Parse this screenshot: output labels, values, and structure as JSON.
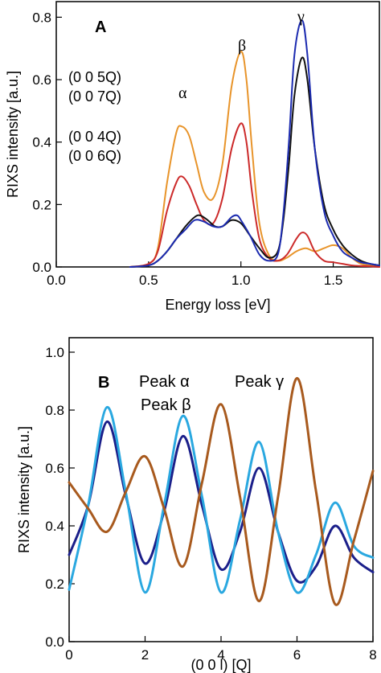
{
  "chart_data": [
    {
      "panel_label": "A",
      "type": "line",
      "xlabel": "Energy loss [eV]",
      "ylabel": "RIXS intensity [a.u.]",
      "xlim": [
        0,
        1.75
      ],
      "ylim": [
        0,
        0.85
      ],
      "x_ticks": [
        "0.0",
        "0.5",
        "1.0",
        "1.5"
      ],
      "x_tick_values": [
        0,
        0.5,
        1.0,
        1.5
      ],
      "y_ticks": [
        "0.0",
        "0.2",
        "0.4",
        "0.6",
        "0.8"
      ],
      "y_tick_values": [
        0,
        0.2,
        0.4,
        0.6,
        0.8
      ],
      "legend": [
        "(0 0 5Q)",
        "(0 0 7Q)",
        "(0 0 4Q)",
        "(0 0 6Q)"
      ],
      "peak_labels": [
        "α",
        "β",
        "γ"
      ],
      "series": [
        {
          "name": "(0 0 5Q)",
          "color": "#e8942a",
          "x": [
            0.4,
            0.5,
            0.55,
            0.6,
            0.65,
            0.68,
            0.72,
            0.76,
            0.8,
            0.85,
            0.9,
            0.95,
            1.0,
            1.03,
            1.06,
            1.1,
            1.15,
            1.2,
            1.25,
            1.3,
            1.35,
            1.4,
            1.45,
            1.5,
            1.55,
            1.6,
            1.65,
            1.7,
            1.75
          ],
          "y": [
            0.0,
            0.01,
            0.06,
            0.27,
            0.43,
            0.45,
            0.42,
            0.33,
            0.24,
            0.22,
            0.33,
            0.58,
            0.69,
            0.6,
            0.38,
            0.14,
            0.04,
            0.02,
            0.03,
            0.05,
            0.06,
            0.05,
            0.06,
            0.07,
            0.06,
            0.03,
            0.01,
            0.005,
            0.0
          ]
        },
        {
          "name": "(0 0 7Q)",
          "color": "#cc2a2a",
          "x": [
            0.4,
            0.5,
            0.55,
            0.6,
            0.65,
            0.68,
            0.72,
            0.76,
            0.8,
            0.85,
            0.9,
            0.95,
            1.0,
            1.03,
            1.06,
            1.1,
            1.15,
            1.2,
            1.25,
            1.3,
            1.33,
            1.36,
            1.4,
            1.45,
            1.5,
            1.55,
            1.6,
            1.65,
            1.7,
            1.75
          ],
          "y": [
            0.0,
            0.01,
            0.05,
            0.18,
            0.27,
            0.29,
            0.26,
            0.2,
            0.15,
            0.14,
            0.22,
            0.38,
            0.46,
            0.4,
            0.24,
            0.09,
            0.03,
            0.02,
            0.04,
            0.09,
            0.11,
            0.1,
            0.05,
            0.02,
            0.015,
            0.01,
            0.005,
            0.003,
            0.002,
            0.0
          ]
        },
        {
          "name": "(0 0 4Q)",
          "color": "#111111",
          "x": [
            0.4,
            0.5,
            0.55,
            0.6,
            0.65,
            0.7,
            0.75,
            0.78,
            0.82,
            0.86,
            0.9,
            0.95,
            1.0,
            1.05,
            1.1,
            1.15,
            1.2,
            1.23,
            1.26,
            1.29,
            1.33,
            1.36,
            1.4,
            1.45,
            1.5,
            1.55,
            1.6,
            1.65,
            1.7,
            1.75
          ],
          "y": [
            0.0,
            0.005,
            0.02,
            0.05,
            0.09,
            0.13,
            0.16,
            0.165,
            0.15,
            0.13,
            0.13,
            0.15,
            0.14,
            0.1,
            0.06,
            0.03,
            0.05,
            0.15,
            0.33,
            0.55,
            0.67,
            0.6,
            0.38,
            0.2,
            0.12,
            0.07,
            0.04,
            0.02,
            0.01,
            0.005
          ]
        },
        {
          "name": "(0 0 6Q)",
          "color": "#1c2bb0",
          "x": [
            0.4,
            0.5,
            0.55,
            0.6,
            0.65,
            0.7,
            0.75,
            0.8,
            0.85,
            0.9,
            0.95,
            0.98,
            1.0,
            1.05,
            1.1,
            1.15,
            1.2,
            1.23,
            1.26,
            1.29,
            1.33,
            1.36,
            1.4,
            1.45,
            1.5,
            1.55,
            1.6,
            1.65,
            1.7,
            1.75
          ],
          "y": [
            0.0,
            0.005,
            0.02,
            0.05,
            0.09,
            0.12,
            0.15,
            0.145,
            0.13,
            0.13,
            0.16,
            0.165,
            0.15,
            0.1,
            0.04,
            0.02,
            0.04,
            0.17,
            0.4,
            0.68,
            0.79,
            0.68,
            0.38,
            0.18,
            0.1,
            0.05,
            0.03,
            0.015,
            0.01,
            0.005
          ]
        }
      ]
    },
    {
      "panel_label": "B",
      "type": "line",
      "xlabel": "(0 0 l) [Q]",
      "ylabel": "RIXS intensity [a.u.]",
      "xlim": [
        0,
        8
      ],
      "ylim": [
        0,
        1.05
      ],
      "x_ticks": [
        "0",
        "2",
        "4",
        "6",
        "8"
      ],
      "x_tick_values": [
        0,
        2,
        4,
        6,
        8
      ],
      "y_ticks": [
        "0.0",
        "0.2",
        "0.4",
        "0.6",
        "0.8",
        "1.0"
      ],
      "y_tick_values": [
        0,
        0.2,
        0.4,
        0.6,
        0.8,
        1.0
      ],
      "legend": [
        "Peak α",
        "Peak β",
        "Peak γ"
      ],
      "series": [
        {
          "name": "Peak α",
          "color": "#1b1f8a",
          "x": [
            0,
            0.5,
            1,
            1.5,
            2,
            2.5,
            3,
            3.5,
            4,
            4.5,
            5,
            5.5,
            6,
            6.5,
            7,
            7.5,
            8
          ],
          "y": [
            0.3,
            0.47,
            0.76,
            0.5,
            0.27,
            0.45,
            0.71,
            0.47,
            0.25,
            0.38,
            0.6,
            0.38,
            0.21,
            0.26,
            0.4,
            0.29,
            0.24
          ]
        },
        {
          "name": "Peak β",
          "color": "#2aa8e0",
          "x": [
            0,
            0.5,
            1,
            1.5,
            2,
            2.5,
            3,
            3.5,
            4,
            4.5,
            5,
            5.5,
            6,
            6.5,
            7,
            7.5,
            8
          ],
          "y": [
            0.18,
            0.47,
            0.81,
            0.51,
            0.17,
            0.47,
            0.78,
            0.5,
            0.17,
            0.42,
            0.69,
            0.38,
            0.17,
            0.3,
            0.48,
            0.33,
            0.29
          ]
        },
        {
          "name": "Peak γ",
          "color": "#a85a1e",
          "x": [
            0,
            0.5,
            1,
            1.5,
            2,
            2.5,
            3,
            3.5,
            4,
            4.5,
            5,
            5.5,
            6,
            6.5,
            7,
            7.5,
            8
          ],
          "y": [
            0.55,
            0.46,
            0.38,
            0.52,
            0.64,
            0.46,
            0.26,
            0.55,
            0.82,
            0.5,
            0.14,
            0.5,
            0.91,
            0.52,
            0.13,
            0.35,
            0.59
          ]
        }
      ]
    }
  ]
}
